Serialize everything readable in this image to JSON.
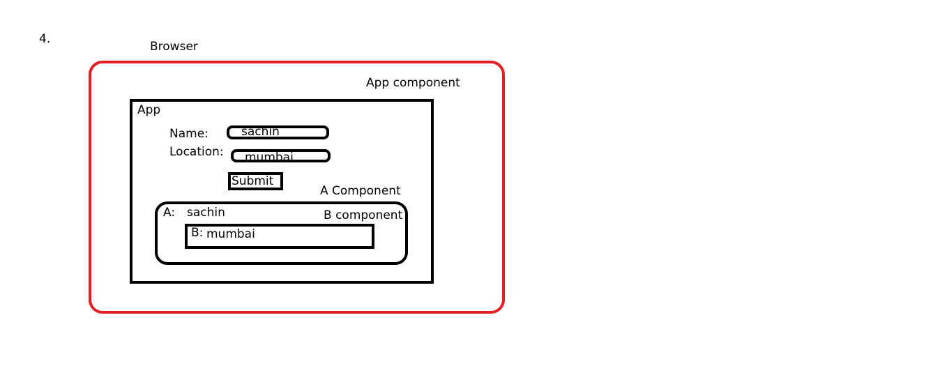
{
  "step_number": "4.",
  "browser": {
    "label": "Browser"
  },
  "app_component": {
    "label": "App  component"
  },
  "app": {
    "title": "App",
    "name_label": "Name:",
    "name_value": "sachin",
    "location_label": "Location:",
    "location_value": "mumbai",
    "submit_label": "Submit"
  },
  "a_component": {
    "label": "A Component",
    "prefix": "A:",
    "value": "sachin"
  },
  "b_component": {
    "label": "B component",
    "prefix": "B:",
    "value": "mumbai"
  },
  "colors": {
    "browser_border": "#e31e24",
    "outline": "#000000"
  }
}
